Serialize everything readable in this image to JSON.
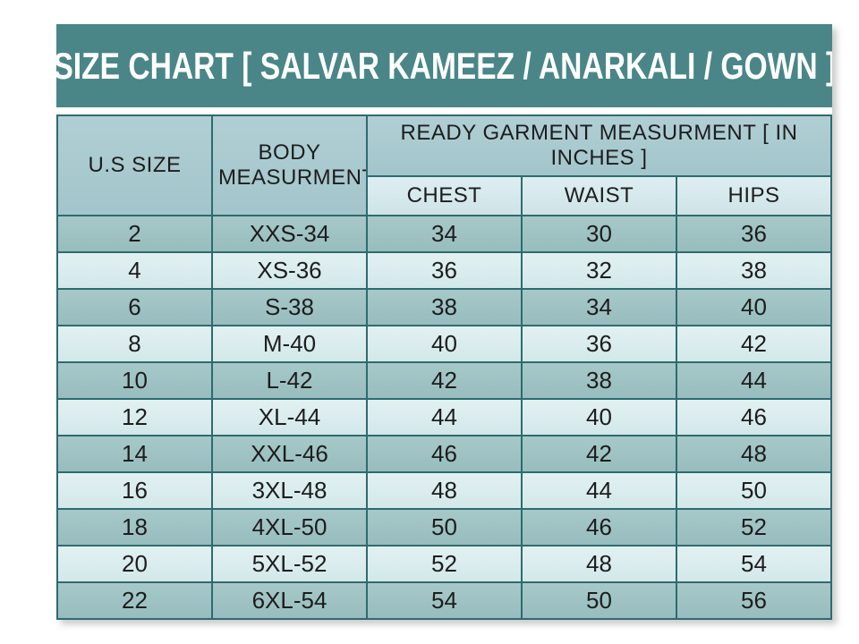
{
  "title": "SIZE CHART [ SALVAR KAMEEZ / ANARKALI / GOWN ]",
  "chart_data": {
    "type": "table",
    "title": "SIZE CHART [ SALVAR KAMEEZ / ANARKALI / GOWN ]",
    "header": {
      "us_size": "U.S SIZE",
      "body_measurment": "BODY MEASURMENT",
      "ready_garment_group": "READY GARMENT MEASURMENT [ IN INCHES ]",
      "chest": "CHEST",
      "waist": "WAIST",
      "hips": "HIPS"
    },
    "columns": [
      "U.S SIZE",
      "BODY MEASURMENT",
      "CHEST",
      "WAIST",
      "HIPS"
    ],
    "rows": [
      [
        "2",
        "XXS-34",
        "34",
        "30",
        "36"
      ],
      [
        "4",
        "XS-36",
        "36",
        "32",
        "38"
      ],
      [
        "6",
        "S-38",
        "38",
        "34",
        "40"
      ],
      [
        "8",
        "M-40",
        "40",
        "36",
        "42"
      ],
      [
        "10",
        "L-42",
        "42",
        "38",
        "44"
      ],
      [
        "12",
        "XL-44",
        "44",
        "40",
        "46"
      ],
      [
        "14",
        "XXL-46",
        "46",
        "42",
        "48"
      ],
      [
        "16",
        "3XL-48",
        "48",
        "44",
        "50"
      ],
      [
        "18",
        "4XL-50",
        "50",
        "46",
        "52"
      ],
      [
        "20",
        "5XL-52",
        "52",
        "48",
        "54"
      ],
      [
        "22",
        "6XL-54",
        "54",
        "50",
        "56"
      ]
    ],
    "row_striping": "rows alternate dark teal and pale blue starting with dark"
  },
  "colors": {
    "page_bg": "#ffffff",
    "title_bar_bg": "#4a8688",
    "title_text": "#ffffff",
    "header_cell_bg": "#a9cbd0",
    "subheader_cell_bg": "#d8eaed",
    "row_dark_bg": "#9fc2c3",
    "row_light_bg": "#dceef0",
    "border": "#2e6b6e",
    "cell_text": "#1d1d1d"
  }
}
